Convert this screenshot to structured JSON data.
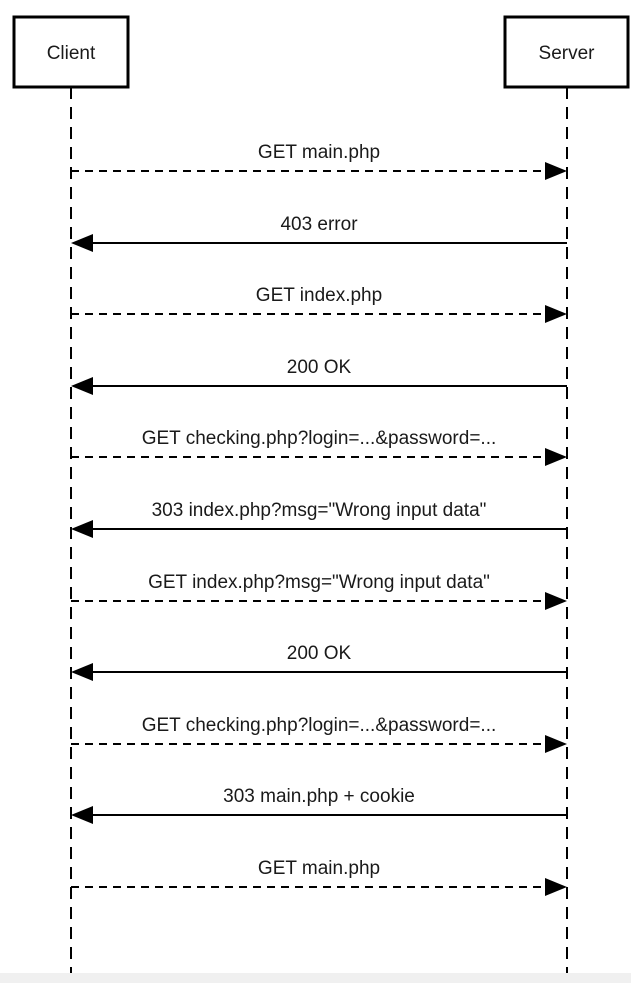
{
  "diagram": {
    "type": "sequence",
    "actors": [
      {
        "id": "client",
        "label": "Client"
      },
      {
        "id": "server",
        "label": "Server"
      }
    ],
    "messages": [
      {
        "from": "client",
        "to": "server",
        "label": "GET main.php",
        "style": "dashed"
      },
      {
        "from": "server",
        "to": "client",
        "label": "403 error",
        "style": "solid"
      },
      {
        "from": "client",
        "to": "server",
        "label": "GET index.php",
        "style": "dashed"
      },
      {
        "from": "server",
        "to": "client",
        "label": "200 OK",
        "style": "solid"
      },
      {
        "from": "client",
        "to": "server",
        "label": "GET checking.php?login=...&password=...",
        "style": "dashed"
      },
      {
        "from": "server",
        "to": "client",
        "label": "303 index.php?msg=\"Wrong input data\"",
        "style": "solid"
      },
      {
        "from": "client",
        "to": "server",
        "label": "GET index.php?msg=\"Wrong input data\"",
        "style": "dashed"
      },
      {
        "from": "server",
        "to": "client",
        "label": "200 OK",
        "style": "solid"
      },
      {
        "from": "client",
        "to": "server",
        "label": "GET checking.php?login=...&password=...",
        "style": "dashed"
      },
      {
        "from": "server",
        "to": "client",
        "label": "303 main.php + cookie",
        "style": "solid"
      },
      {
        "from": "client",
        "to": "server",
        "label": "GET main.php",
        "style": "dashed"
      }
    ],
    "colors": {
      "line": "#000000",
      "text": "#1a1a1a",
      "box_fill": "#ffffff"
    }
  }
}
